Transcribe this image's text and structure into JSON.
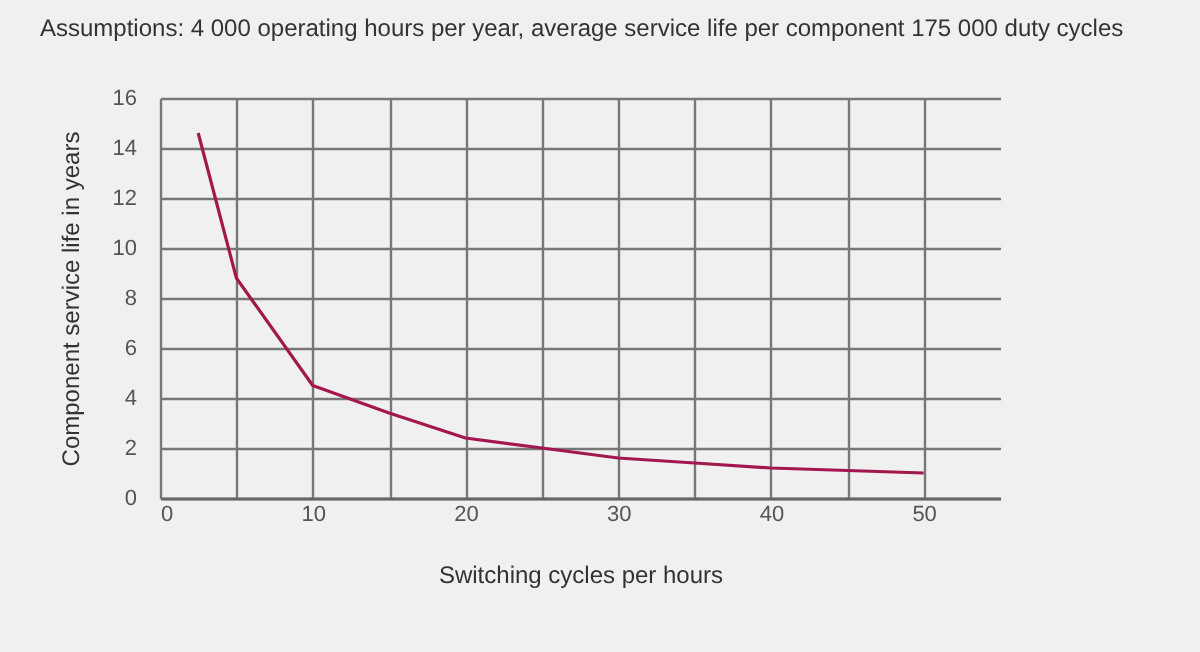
{
  "chart_data": {
    "type": "line",
    "title": "Assumptions: 4 000 operating hours per year, average service life per component 175 000 duty cycles",
    "xlabel": "Switching cycles per hours",
    "ylabel": "Component service life in years",
    "x": [
      2.5,
      5,
      10,
      15,
      20,
      25,
      30,
      35,
      40,
      45,
      50
    ],
    "series": [
      {
        "color": "#a3174f",
        "values": [
          14.6,
          8.8,
          4.5,
          3.4,
          2.4,
          2.0,
          1.6,
          1.4,
          1.2,
          1.1,
          1.0
        ]
      }
    ],
    "xlim": [
      0,
      55
    ],
    "xticks": [
      0,
      {
        "value": 5,
        "label": null
      },
      10,
      {
        "value": 15,
        "label": null
      },
      20,
      {
        "value": 25,
        "label": null
      },
      30,
      {
        "value": 35,
        "label": null
      },
      40,
      {
        "value": 45,
        "label": null
      },
      50
    ],
    "ylim": [
      0,
      16
    ],
    "yticks": [
      0,
      2,
      4,
      6,
      8,
      10,
      12,
      14,
      16
    ],
    "grid": true,
    "marker": "none",
    "line_style": "solid",
    "legend": false
  }
}
